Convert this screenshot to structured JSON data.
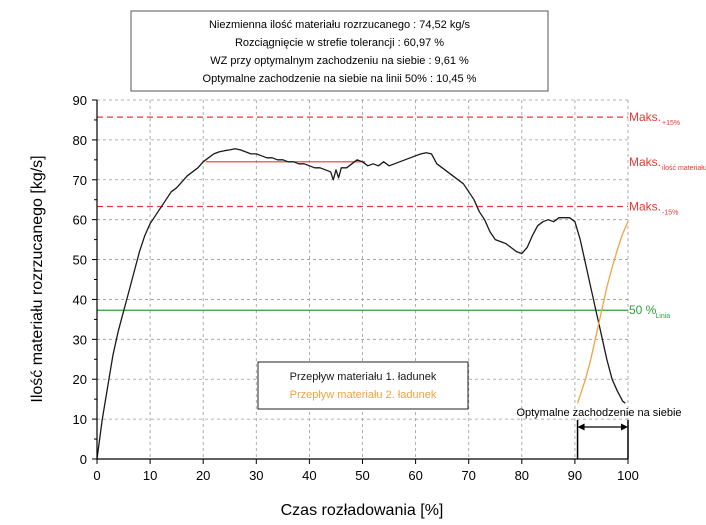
{
  "chart_data": {
    "type": "line",
    "xlabel": "Czas rozładowania [%]",
    "ylabel": "Ilość materiału rozrzucanego [kg/s]",
    "xlim": [
      0,
      100
    ],
    "ylim": [
      0,
      90
    ],
    "x_ticks": [
      "0",
      "10",
      "20",
      "30",
      "40",
      "50",
      "60",
      "70",
      "80",
      "90",
      "100"
    ],
    "y_ticks": [
      "0",
      "10",
      "20",
      "30",
      "40",
      "50",
      "60",
      "70",
      "80",
      "90"
    ],
    "grid": true,
    "info_box": [
      "Niezmienna ilość materiału rozrzucanego : 74,52 kg/s",
      "Rozciągnięcie w strefie tolerancji : 60,97 %",
      "WZ przy optymalnym zachodzeniu na siebie : 9,61 %",
      "Optymalne zachodzenie na siebie na linii 50% : 10,45 %"
    ],
    "series": [
      {
        "name": "Przepływ materiału 1. ładunek",
        "color": "#1a1a1a",
        "x": [
          0,
          1,
          2,
          3,
          4,
          5,
          6,
          7,
          8,
          9,
          10,
          11,
          12,
          13,
          14,
          15,
          16,
          17,
          18,
          19,
          20,
          21,
          22,
          23,
          24,
          25,
          26,
          27,
          28,
          29,
          30,
          31,
          32,
          33,
          34,
          35,
          36,
          37,
          38,
          39,
          40,
          41,
          42,
          43,
          44,
          44.5,
          45,
          45.5,
          46,
          47,
          48,
          49,
          50,
          51,
          52,
          53,
          54,
          55,
          56,
          57,
          58,
          59,
          60,
          61,
          62,
          63,
          64,
          65,
          66,
          67,
          68,
          69,
          70,
          71,
          72,
          73,
          74,
          75,
          76,
          77,
          78,
          79,
          80,
          81,
          82,
          83,
          84,
          85,
          86,
          87,
          88,
          89,
          90,
          91,
          92,
          93,
          94,
          95,
          96,
          97,
          98,
          99,
          99.5
        ],
        "y": [
          0,
          10,
          18,
          26,
          32,
          37,
          42,
          47,
          52,
          56,
          59,
          61,
          63,
          65,
          67,
          68,
          69.5,
          71,
          72,
          73,
          74.5,
          75.5,
          76.5,
          77,
          77.3,
          77.5,
          77.8,
          77.5,
          77,
          76.5,
          76.5,
          76,
          75.5,
          75.5,
          75,
          75,
          74.5,
          74.5,
          74,
          74,
          73.5,
          73,
          73,
          72.5,
          72,
          70,
          72.5,
          70.5,
          73,
          73,
          74,
          75,
          74.5,
          73.5,
          74,
          73.5,
          74.5,
          73.5,
          74,
          74.5,
          75,
          75.5,
          76,
          76.5,
          76.8,
          76.5,
          74,
          73,
          72,
          71,
          70,
          69,
          67,
          65,
          62,
          60,
          57,
          55,
          54.5,
          54,
          53,
          52,
          51.5,
          53,
          56,
          58.5,
          59.5,
          60,
          59.5,
          60.5,
          60.5,
          60.5,
          59.5,
          55,
          49,
          43,
          37,
          31,
          25,
          20,
          17,
          14.5,
          14
        ]
      },
      {
        "name": "Przepływ materiału 2. ładunek",
        "color": "#f5a142",
        "x": [
          90.5,
          91,
          92,
          93,
          94,
          95,
          96,
          97,
          98,
          99,
          100
        ],
        "y": [
          14,
          16,
          20,
          25,
          31,
          37,
          43,
          48,
          52.5,
          56.5,
          59.5
        ]
      }
    ],
    "reference_lines": [
      {
        "label": "Maks.",
        "sub": "+15%",
        "y": 85.7,
        "color": "#e53935",
        "style": "dashed"
      },
      {
        "label": "Maks.",
        "sub": "ilość materiału rozrzucanego",
        "y": 74.5,
        "color": "#e53935",
        "style": "solid",
        "x_range": [
          20.5,
          50.5
        ]
      },
      {
        "label": "Maks.",
        "sub": "-15%",
        "y": 63.3,
        "color": "#e53935",
        "style": "dashed"
      },
      {
        "label": "50 %",
        "sub": "Linia",
        "y": 37.3,
        "color": "#2e9e3e",
        "style": "solid"
      }
    ],
    "annotation": {
      "text": "Optymalne zachodzenie na siebie",
      "x_range": [
        90.5,
        100
      ]
    }
  }
}
